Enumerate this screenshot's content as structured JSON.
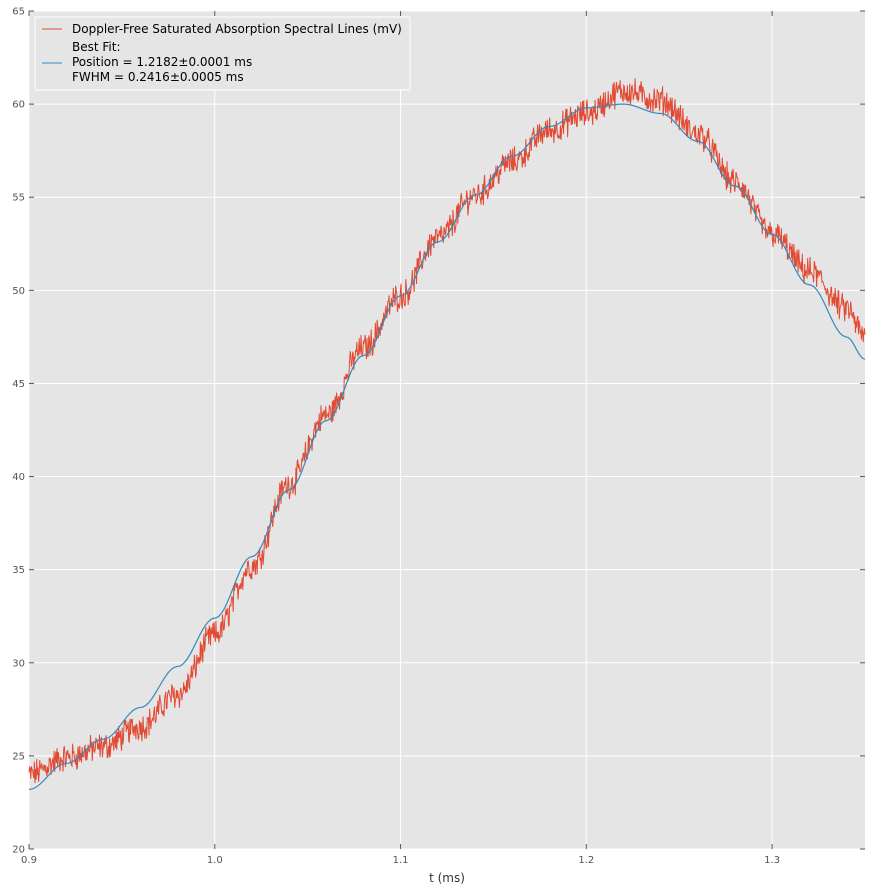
{
  "chart_data": {
    "type": "line",
    "title": "",
    "xlabel": "t (ms)",
    "ylabel": "",
    "xlim": [
      0.9,
      1.35
    ],
    "ylim": [
      20,
      65
    ],
    "xticks": [
      0.9,
      1.0,
      1.1,
      1.2,
      1.3
    ],
    "xtick_labels": [
      "0.9",
      "1.0",
      "1.1",
      "1.2",
      "1.3"
    ],
    "yticks": [
      20,
      25,
      30,
      35,
      40,
      45,
      50,
      55,
      60,
      65
    ],
    "ytick_labels": [
      "20",
      "25",
      "30",
      "35",
      "40",
      "45",
      "50",
      "55",
      "60",
      "65"
    ],
    "grid": true,
    "legend_position": "top-left",
    "background": "#e5e5e5",
    "series": [
      {
        "name": "Doppler-Free Saturated Absorption Spectral Lines (mV)",
        "color": "#e24a33",
        "style": "noisy-data",
        "x": [
          0.9,
          0.92,
          0.94,
          0.96,
          0.98,
          1.0,
          1.02,
          1.04,
          1.06,
          1.08,
          1.1,
          1.12,
          1.14,
          1.16,
          1.18,
          1.2,
          1.22,
          1.24,
          1.26,
          1.28,
          1.3,
          1.32,
          1.34,
          1.35
        ],
        "y": [
          24.0,
          24.9,
          25.5,
          26.6,
          28.3,
          31.5,
          35.2,
          39.6,
          43.3,
          46.9,
          49.7,
          52.8,
          55.1,
          56.9,
          58.6,
          59.5,
          60.7,
          60.2,
          58.4,
          55.8,
          53.0,
          51.0,
          49.0,
          47.5
        ]
      },
      {
        "name": "Best Fit:",
        "legend_lines": [
          "Best Fit:",
          "Position = 1.2182±0.0001 ms",
          "FWHM = 0.2416±0.0005 ms"
        ],
        "color": "#348abd",
        "style": "smooth-fit",
        "x": [
          0.9,
          0.92,
          0.94,
          0.96,
          0.98,
          1.0,
          1.02,
          1.04,
          1.06,
          1.08,
          1.1,
          1.12,
          1.14,
          1.16,
          1.18,
          1.2,
          1.22,
          1.24,
          1.26,
          1.28,
          1.3,
          1.32,
          1.34,
          1.35
        ],
        "y": [
          23.2,
          24.6,
          25.9,
          27.6,
          29.8,
          32.4,
          35.7,
          39.3,
          43.0,
          46.5,
          49.7,
          52.6,
          55.1,
          57.2,
          58.8,
          59.8,
          60.0,
          59.5,
          58.0,
          55.6,
          53.0,
          50.3,
          47.5,
          46.3
        ]
      }
    ]
  }
}
